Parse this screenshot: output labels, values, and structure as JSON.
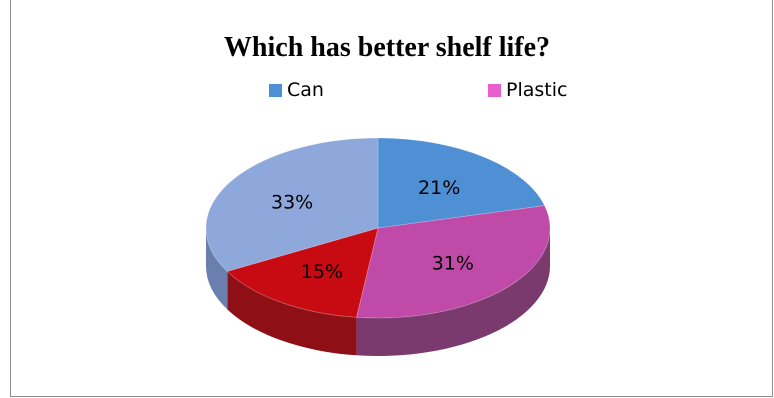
{
  "chart_data": {
    "type": "pie",
    "title": "Which has better shelf life?",
    "categories": [
      "Can",
      "Plastic",
      "",
      ""
    ],
    "values": [
      21,
      31,
      15,
      33
    ],
    "labels": [
      "21%",
      "31%",
      "15%",
      "33%"
    ],
    "colors": [
      "#4f8fd3",
      "#c04aa8",
      "#c80a12",
      "#8ea8db"
    ],
    "side_colors": [
      "#3a6aa0",
      "#7a3a6e",
      "#8e1016",
      "#6b7fae"
    ],
    "legend": [
      {
        "name": "Can",
        "color": "#4f8fd3"
      },
      {
        "name": "Plastic",
        "color": "#e85fd0"
      }
    ],
    "legend_position": "top",
    "style": "3d"
  }
}
